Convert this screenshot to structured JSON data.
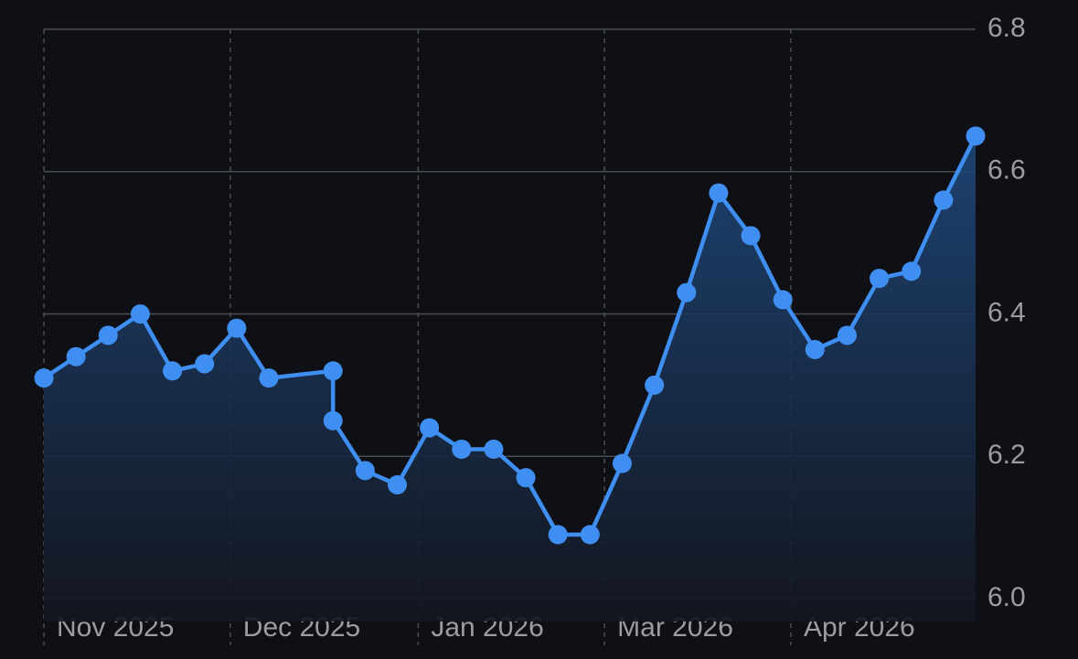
{
  "chart_data": {
    "type": "line",
    "x": [
      0,
      1,
      2,
      3,
      4,
      5,
      6,
      7,
      9,
      9,
      10,
      11,
      12,
      13,
      14,
      15,
      16,
      17,
      18,
      19,
      20,
      21,
      22,
      23,
      24,
      25,
      26,
      27,
      28,
      29
    ],
    "values": [
      6.31,
      6.34,
      6.37,
      6.4,
      6.32,
      6.33,
      6.38,
      6.31,
      6.32,
      6.25,
      6.18,
      6.16,
      6.24,
      6.21,
      6.21,
      6.17,
      6.09,
      6.09,
      6.19,
      6.3,
      6.43,
      6.57,
      6.51,
      6.42,
      6.35,
      6.37,
      6.45,
      6.46,
      6.56,
      6.65
    ],
    "color": "#3f8ff2",
    "xlim": [
      0,
      29
    ],
    "xticks": [
      {
        "value": 0,
        "label": "Nov 2025"
      },
      {
        "value": 5.8,
        "label": "Dec 2025"
      },
      {
        "value": 11.65,
        "label": "Jan 2026"
      },
      {
        "value": 17.45,
        "label": "Mar 2026"
      },
      {
        "value": 23.25,
        "label": "Apr 2026"
      }
    ],
    "ylim": [
      6.0,
      6.8
    ],
    "yticks": [
      {
        "value": 6.0,
        "label": "6.0"
      },
      6.2,
      6.4,
      6.6,
      6.8
    ],
    "grid": true,
    "area": true
  }
}
